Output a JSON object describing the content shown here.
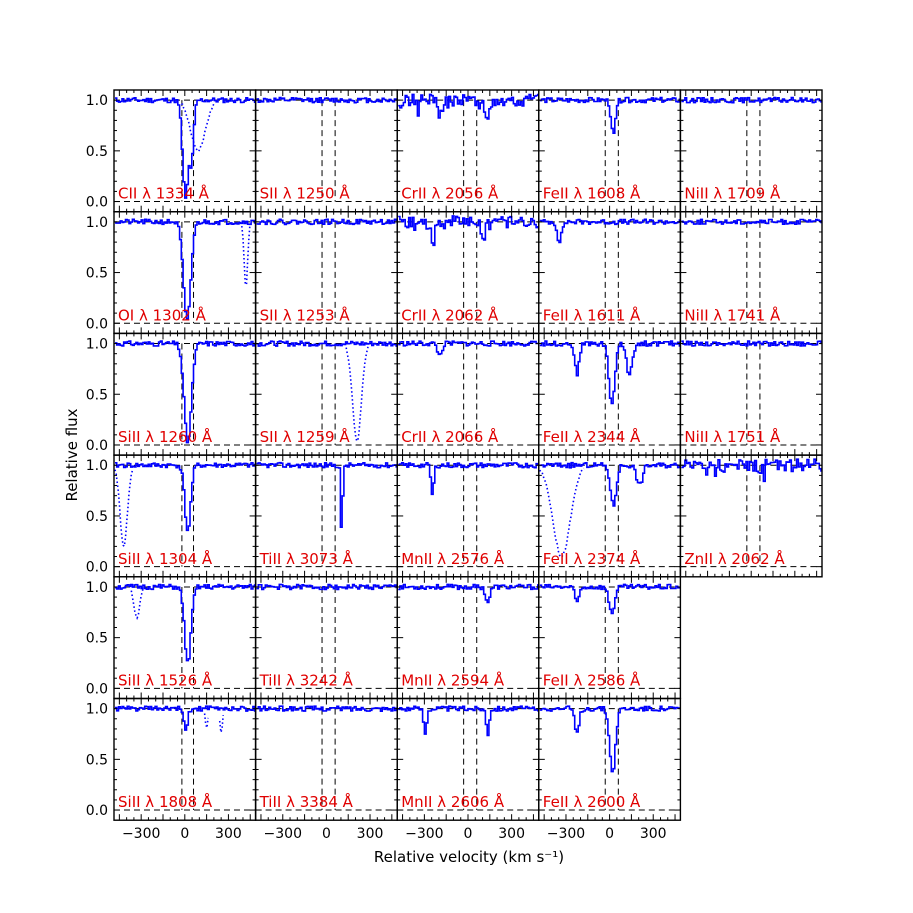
{
  "chart_data": {
    "type": "line",
    "title": "",
    "xlabel": "Relative velocity (km s⁻¹)",
    "ylabel": "Relative flux",
    "xlim": [
      -480,
      480
    ],
    "ylim": [
      -0.1,
      1.1
    ],
    "xticks": [
      -300,
      0,
      300
    ],
    "xtick_labels": [
      "−300",
      "0",
      "300"
    ],
    "yticks": [
      0.0,
      0.5,
      1.0
    ],
    "ytick_labels": [
      "0.0",
      "0.5",
      "1.0"
    ],
    "continuum_level": 1.0,
    "zero_level": 0.0,
    "grid": false,
    "colors": {
      "spectrum": "#0000ff",
      "label": "#e00000",
      "guide": "#000000",
      "zero_line": "#8888ff"
    },
    "panels": [
      {
        "row": 0,
        "col": 0,
        "label": "CII λ 1334 Å",
        "vlines": [
          -20,
          60
        ],
        "absorbers": [
          {
            "v": 0,
            "depth": 0.98,
            "width": 20
          },
          {
            "v": 40,
            "depth": 0.6,
            "width": 15
          }
        ],
        "blends": [
          {
            "v": 90,
            "depth": 0.5,
            "width": 50
          }
        ],
        "seed": 11
      },
      {
        "row": 0,
        "col": 1,
        "label": "SII λ 1250 Å",
        "vlines": [
          -30,
          60
        ],
        "absorbers": [],
        "blends": [],
        "seed": 12
      },
      {
        "row": 0,
        "col": 2,
        "label": "CrII λ 2056 Å",
        "vlines": [
          -30,
          60
        ],
        "absorbers": [
          {
            "v": -200,
            "depth": 0.15,
            "width": 15
          },
          {
            "v": 120,
            "depth": 0.2,
            "width": 15
          }
        ],
        "blends": [],
        "seed": 13,
        "noisy": true
      },
      {
        "row": 0,
        "col": 3,
        "label": "FeII λ 1608 Å",
        "vlines": [
          -30,
          60
        ],
        "absorbers": [
          {
            "v": 20,
            "depth": 0.35,
            "width": 15
          }
        ],
        "blends": [],
        "seed": 14
      },
      {
        "row": 0,
        "col": 4,
        "label": "NiII λ 1709 Å",
        "vlines": [
          -30,
          60
        ],
        "absorbers": [],
        "blends": [],
        "seed": 15
      },
      {
        "row": 1,
        "col": 0,
        "label": "OI λ 1302 Å",
        "vlines": [
          -20,
          60
        ],
        "absorbers": [
          {
            "v": 10,
            "depth": 0.98,
            "width": 25
          }
        ],
        "blends": [
          {
            "v": 420,
            "depth": 0.65,
            "width": 12
          }
        ],
        "seed": 21
      },
      {
        "row": 1,
        "col": 1,
        "label": "SII λ 1253 Å",
        "vlines": [
          -30,
          60
        ],
        "absorbers": [],
        "blends": [],
        "seed": 22
      },
      {
        "row": 1,
        "col": 2,
        "label": "CrII λ 2062 Å",
        "vlines": [
          -30,
          60
        ],
        "absorbers": [
          {
            "v": -250,
            "depth": 0.15,
            "width": 20
          },
          {
            "v": 100,
            "depth": 0.15,
            "width": 15
          }
        ],
        "blends": [],
        "seed": 23,
        "noisy": true
      },
      {
        "row": 1,
        "col": 3,
        "label": "FeII λ 1611 Å",
        "vlines": [
          -30,
          60
        ],
        "absorbers": [
          {
            "v": -350,
            "depth": 0.2,
            "width": 15
          }
        ],
        "blends": [],
        "seed": 24
      },
      {
        "row": 1,
        "col": 4,
        "label": "NiII λ 1741 Å",
        "vlines": [
          -30,
          60
        ],
        "absorbers": [],
        "blends": [],
        "seed": 25
      },
      {
        "row": 2,
        "col": 0,
        "label": "SiII λ 1260 Å",
        "vlines": [
          -20,
          60
        ],
        "absorbers": [
          {
            "v": 15,
            "depth": 0.97,
            "width": 25
          }
        ],
        "blends": [],
        "seed": 31
      },
      {
        "row": 2,
        "col": 1,
        "label": "SII λ 1259 Å",
        "vlines": [
          -30,
          60
        ],
        "absorbers": [],
        "blends": [
          {
            "v": 210,
            "depth": 0.97,
            "width": 30
          }
        ],
        "seed": 32
      },
      {
        "row": 2,
        "col": 2,
        "label": "CrII λ 2066 Å",
        "vlines": [
          -30,
          60
        ],
        "absorbers": [
          {
            "v": -200,
            "depth": 0.12,
            "width": 15
          }
        ],
        "blends": [],
        "seed": 33
      },
      {
        "row": 2,
        "col": 3,
        "label": "FeII λ 2344 Å",
        "vlines": [
          -30,
          60
        ],
        "absorbers": [
          {
            "v": 10,
            "depth": 0.6,
            "width": 20
          },
          {
            "v": -230,
            "depth": 0.3,
            "width": 15
          },
          {
            "v": 130,
            "depth": 0.3,
            "width": 20
          }
        ],
        "blends": [],
        "seed": 34
      },
      {
        "row": 2,
        "col": 4,
        "label": "NiII λ 1751 Å",
        "vlines": [
          -30,
          60
        ],
        "absorbers": [],
        "blends": [],
        "seed": 35
      },
      {
        "row": 3,
        "col": 0,
        "label": "SiII λ 1304 Å",
        "vlines": [
          -20,
          60
        ],
        "absorbers": [
          {
            "v": 15,
            "depth": 0.65,
            "width": 20
          }
        ],
        "blends": [
          {
            "v": -420,
            "depth": 0.8,
            "width": 25
          }
        ],
        "seed": 41
      },
      {
        "row": 3,
        "col": 1,
        "label": "TiII λ 3073 Å",
        "vlines": [
          -30,
          60
        ],
        "absorbers": [
          {
            "v": 100,
            "depth": 0.78,
            "width": 6
          }
        ],
        "blends": [],
        "seed": 42
      },
      {
        "row": 3,
        "col": 2,
        "label": "MnII λ 2576 Å",
        "vlines": [
          -30,
          60
        ],
        "absorbers": [
          {
            "v": -250,
            "depth": 0.3,
            "width": 10
          }
        ],
        "blends": [],
        "seed": 43
      },
      {
        "row": 3,
        "col": 3,
        "label": "FeII λ 2374 Å",
        "vlines": [
          -30,
          60
        ],
        "absorbers": [
          {
            "v": 20,
            "depth": 0.4,
            "width": 20
          },
          {
            "v": 200,
            "depth": 0.2,
            "width": 20
          }
        ],
        "blends": [
          {
            "v": -330,
            "depth": 0.9,
            "width": 60
          }
        ],
        "seed": 44
      },
      {
        "row": 3,
        "col": 4,
        "label": "ZnII λ 2062 Å",
        "vlines": [
          -30,
          60
        ],
        "absorbers": [],
        "blends": [],
        "seed": 45,
        "noisy": true
      },
      {
        "row": 4,
        "col": 0,
        "label": "SiII λ 1526 Å",
        "vlines": [
          -20,
          60
        ],
        "absorbers": [
          {
            "v": 15,
            "depth": 0.75,
            "width": 22
          }
        ],
        "blends": [
          {
            "v": -330,
            "depth": 0.3,
            "width": 20
          }
        ],
        "seed": 51
      },
      {
        "row": 4,
        "col": 1,
        "label": "TiII λ 3242 Å",
        "vlines": [
          -30,
          60
        ],
        "absorbers": [],
        "blends": [],
        "seed": 52
      },
      {
        "row": 4,
        "col": 2,
        "label": "MnII λ 2594 Å",
        "vlines": [
          -30,
          60
        ],
        "absorbers": [
          {
            "v": 130,
            "depth": 0.15,
            "width": 15
          }
        ],
        "blends": [],
        "seed": 53
      },
      {
        "row": 4,
        "col": 3,
        "label": "FeII λ 2586 Å",
        "vlines": [
          -30,
          60
        ],
        "absorbers": [
          {
            "v": 10,
            "depth": 0.25,
            "width": 20
          },
          {
            "v": -230,
            "depth": 0.15,
            "width": 15
          }
        ],
        "blends": [],
        "seed": 54
      },
      {
        "row": 5,
        "col": 0,
        "label": "SiII λ 1808 Å",
        "vlines": [
          -20,
          60
        ],
        "absorbers": [
          {
            "v": 0,
            "depth": 0.2,
            "width": 15
          }
        ],
        "blends": [
          {
            "v": 150,
            "depth": 0.2,
            "width": 8
          },
          {
            "v": 250,
            "depth": 0.25,
            "width": 8
          }
        ],
        "seed": 61
      },
      {
        "row": 5,
        "col": 1,
        "label": "TiII λ 3384 Å",
        "vlines": [
          -30,
          60
        ],
        "absorbers": [],
        "blends": [],
        "seed": 62
      },
      {
        "row": 5,
        "col": 2,
        "label": "MnII λ 2606 Å",
        "vlines": [
          -30,
          60
        ],
        "absorbers": [
          {
            "v": -300,
            "depth": 0.25,
            "width": 10
          },
          {
            "v": 130,
            "depth": 0.25,
            "width": 10
          }
        ],
        "blends": [],
        "seed": 63
      },
      {
        "row": 5,
        "col": 3,
        "label": "FeII λ 2600 Å",
        "vlines": [
          -30,
          60
        ],
        "absorbers": [
          {
            "v": 15,
            "depth": 0.63,
            "width": 20
          },
          {
            "v": -230,
            "depth": 0.25,
            "width": 15
          }
        ],
        "blends": [],
        "seed": 64
      }
    ]
  }
}
